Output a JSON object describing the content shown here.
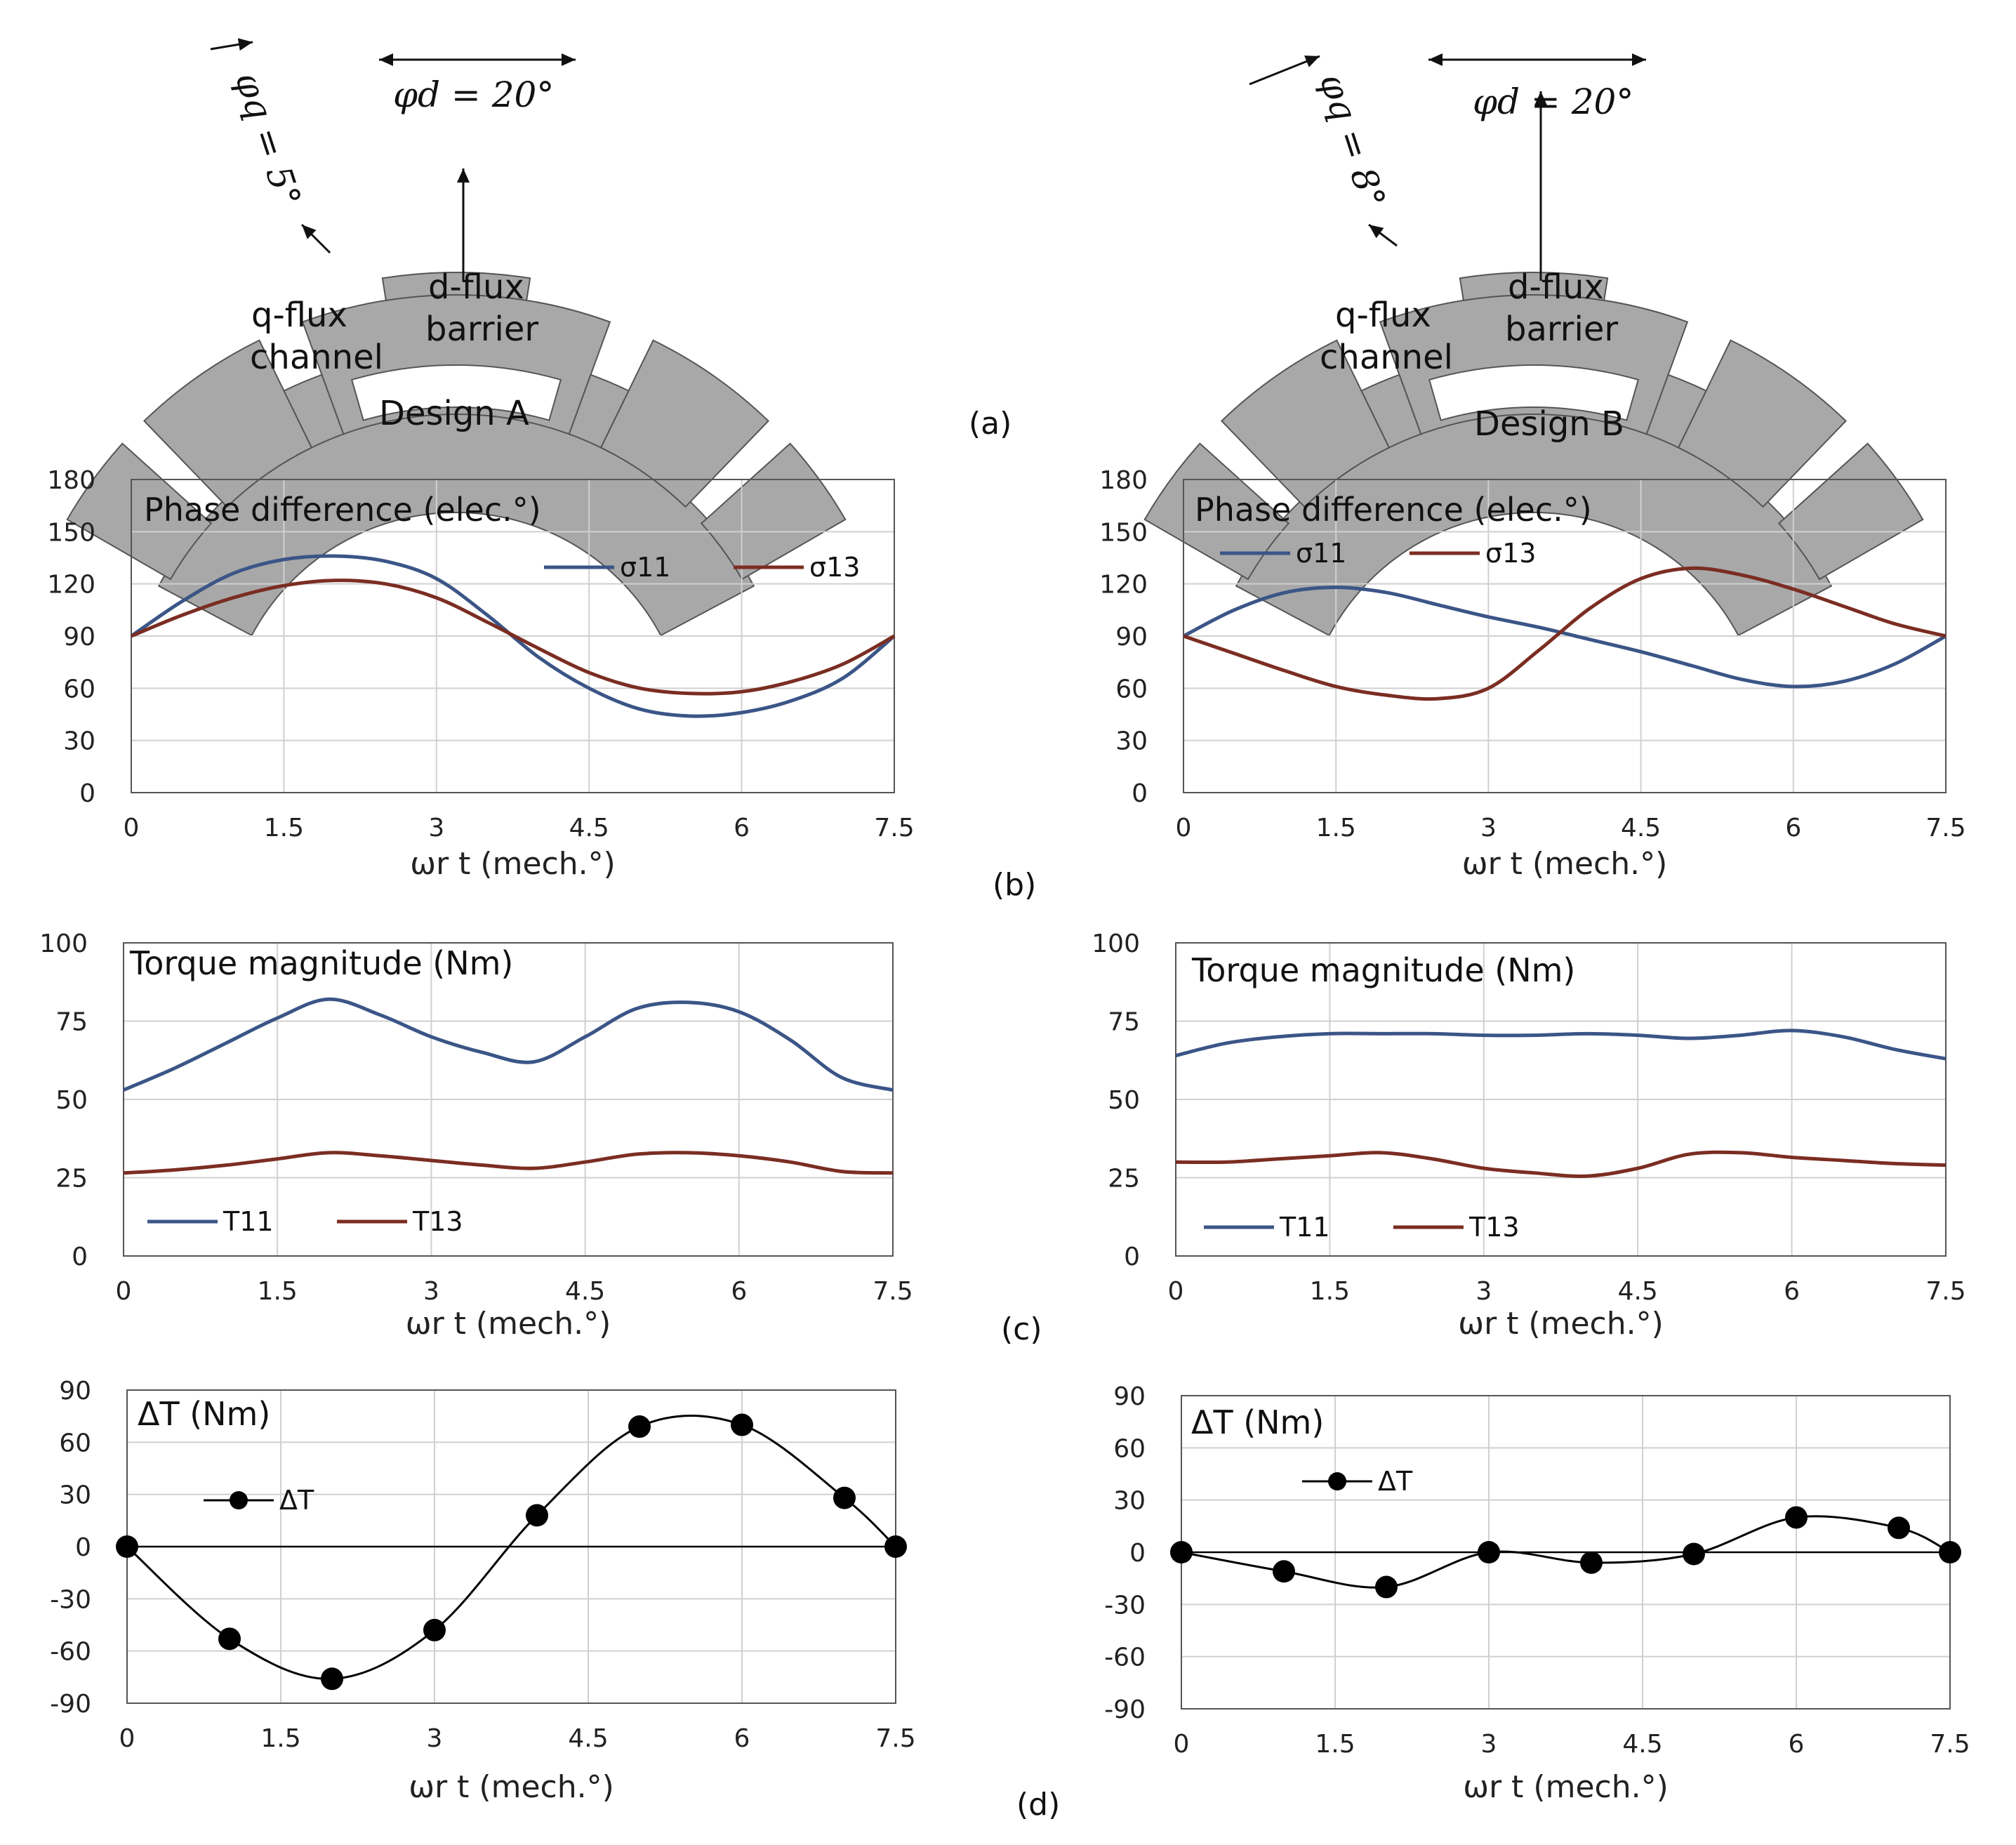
{
  "panel_labels": {
    "a": "(a)",
    "b": "(b)",
    "c": "(c)",
    "d": "(d)"
  },
  "rotors": [
    {
      "design": "Design A",
      "phi_q": "φq = 5°",
      "phi_d": "φd = 20°",
      "q_label_1": "q-flux",
      "q_label_2": "channel",
      "d_label_1": "d-flux",
      "d_label_2": "barrier"
    },
    {
      "design": "Design B",
      "phi_q": "φq = 8°",
      "phi_d": "φd = 20°",
      "q_label_1": "q-flux",
      "q_label_2": "channel",
      "d_label_1": "d-flux",
      "d_label_2": "barrier"
    }
  ],
  "colors": {
    "blue": "#3b5587",
    "red": "#7b2d22",
    "black": "#000000",
    "grid": "#d0d0d0",
    "rotor_fill": "#a8a8a8",
    "rotor_stroke": "#555555"
  },
  "chart_data": [
    {
      "id": "phaseA",
      "type": "line",
      "title": "Phase difference (elec.°)",
      "xlabel": "ωr t (mech.°)",
      "xlim": [
        0,
        7.5
      ],
      "ylim": [
        0,
        180
      ],
      "xticks": [
        "0",
        "1.5",
        "3",
        "4.5",
        "6",
        "7.5"
      ],
      "yticks": [
        "0",
        "30",
        "60",
        "90",
        "120",
        "150",
        "180"
      ],
      "legend": "top-right",
      "x": [
        0,
        0.5,
        1,
        1.5,
        2,
        2.5,
        3,
        3.5,
        4,
        4.5,
        5,
        5.5,
        6,
        6.5,
        7,
        7.5
      ],
      "series": [
        {
          "name": "σ11",
          "color": "blue",
          "values": [
            90,
            110,
            126,
            134,
            136,
            133,
            123,
            102,
            78,
            60,
            48,
            44,
            46,
            53,
            66,
            90
          ]
        },
        {
          "name": "σ13",
          "color": "red",
          "values": [
            90,
            102,
            112,
            119,
            122,
            120,
            112,
            98,
            83,
            69,
            60,
            57,
            58,
            64,
            74,
            90
          ]
        }
      ]
    },
    {
      "id": "phaseB",
      "type": "line",
      "title": "Phase difference (elec.°)",
      "xlabel": "ωr t (mech.°)",
      "xlim": [
        0,
        7.5
      ],
      "ylim": [
        0,
        180
      ],
      "xticks": [
        "0",
        "1.5",
        "3",
        "4.5",
        "6",
        "7.5"
      ],
      "yticks": [
        "0",
        "30",
        "60",
        "90",
        "120",
        "150",
        "180"
      ],
      "legend": "top-left",
      "x": [
        0,
        0.5,
        1,
        1.5,
        2,
        2.5,
        3,
        3.5,
        4,
        4.5,
        5,
        5.5,
        6,
        6.5,
        7,
        7.5
      ],
      "series": [
        {
          "name": "σ11",
          "color": "blue",
          "values": [
            90,
            105,
            115,
            118,
            115,
            108,
            101,
            95,
            88,
            81,
            73,
            65,
            61,
            64,
            74,
            90
          ]
        },
        {
          "name": "σ13",
          "color": "red",
          "values": [
            90,
            80,
            70,
            61,
            56,
            54,
            60,
            82,
            106,
            123,
            129,
            125,
            117,
            107,
            97,
            90
          ]
        }
      ]
    },
    {
      "id": "torqueA",
      "type": "line",
      "title": "Torque magnitude (Nm)",
      "xlabel": "ωr t (mech.°)",
      "xlim": [
        0,
        7.5
      ],
      "ylim": [
        0,
        100
      ],
      "xticks": [
        "0",
        "1.5",
        "3",
        "4.5",
        "6",
        "7.5"
      ],
      "yticks": [
        "0",
        "25",
        "50",
        "75",
        "100"
      ],
      "legend": "bottom-left",
      "x": [
        0,
        0.5,
        1,
        1.5,
        2,
        2.5,
        3,
        3.5,
        4,
        4.5,
        5,
        5.5,
        6,
        6.5,
        7,
        7.5
      ],
      "series": [
        {
          "name": "T11",
          "color": "blue",
          "values": [
            53,
            60,
            68,
            76,
            82,
            77,
            70,
            65,
            62,
            70,
            79,
            81,
            78,
            69,
            57,
            53
          ]
        },
        {
          "name": "T13",
          "color": "red",
          "values": [
            26.5,
            27.5,
            29,
            31,
            33,
            32,
            30.5,
            29,
            28,
            30,
            32.5,
            33,
            32,
            30,
            27,
            26.5
          ]
        }
      ]
    },
    {
      "id": "torqueB",
      "type": "line",
      "title": "Torque magnitude (Nm)",
      "xlabel": "ωr t (mech.°)",
      "xlim": [
        0,
        7.5
      ],
      "ylim": [
        0,
        100
      ],
      "xticks": [
        "0",
        "1.5",
        "3",
        "4.5",
        "6",
        "7.5"
      ],
      "yticks": [
        "0",
        "25",
        "50",
        "75",
        "100"
      ],
      "legend": "bottom-left",
      "x": [
        0,
        0.5,
        1,
        1.5,
        2,
        2.5,
        3,
        3.5,
        4,
        4.5,
        5,
        5.5,
        6,
        6.5,
        7,
        7.5
      ],
      "series": [
        {
          "name": "T11",
          "color": "blue",
          "values": [
            64,
            68,
            70,
            71,
            71,
            71,
            70.5,
            70.5,
            71,
            70.5,
            69.5,
            70.5,
            72,
            70,
            66,
            63
          ]
        },
        {
          "name": "T13",
          "color": "red",
          "values": [
            30,
            30,
            31,
            32,
            33,
            31,
            28,
            26.5,
            25.5,
            28,
            32.5,
            33,
            31.5,
            30.5,
            29.5,
            29
          ]
        }
      ]
    },
    {
      "id": "deltaA",
      "type": "line",
      "title": "ΔT (Nm)",
      "xlabel": "ωr t (mech.°)",
      "xlim": [
        0,
        7.5
      ],
      "ylim": [
        -90,
        90
      ],
      "xticks": [
        "0",
        "1.5",
        "3",
        "4.5",
        "6",
        "7.5"
      ],
      "yticks": [
        "-90",
        "-60",
        "-30",
        "0",
        "30",
        "60",
        "90"
      ],
      "legend": "top-left",
      "x": [
        0,
        1,
        2,
        3,
        4,
        5,
        6,
        7,
        7.5
      ],
      "series": [
        {
          "name": "ΔT",
          "color": "black",
          "markers": true,
          "values": [
            0,
            -53,
            -76,
            -48,
            18,
            69,
            70,
            28,
            0
          ]
        }
      ]
    },
    {
      "id": "deltaB",
      "type": "line",
      "title": "ΔT (Nm)",
      "xlabel": "ωr t (mech.°)",
      "xlim": [
        0,
        7.5
      ],
      "ylim": [
        -90,
        90
      ],
      "xticks": [
        "0",
        "1.5",
        "3",
        "4.5",
        "6",
        "7.5"
      ],
      "yticks": [
        "-90",
        "-60",
        "-30",
        "0",
        "30",
        "60",
        "90"
      ],
      "legend": "top-left",
      "x": [
        0,
        1,
        2,
        3,
        4,
        5,
        6,
        7,
        7.5
      ],
      "series": [
        {
          "name": "ΔT",
          "color": "black",
          "markers": true,
          "values": [
            0,
            -11,
            -20,
            0,
            -6,
            -1,
            20,
            14,
            0
          ]
        }
      ]
    }
  ]
}
